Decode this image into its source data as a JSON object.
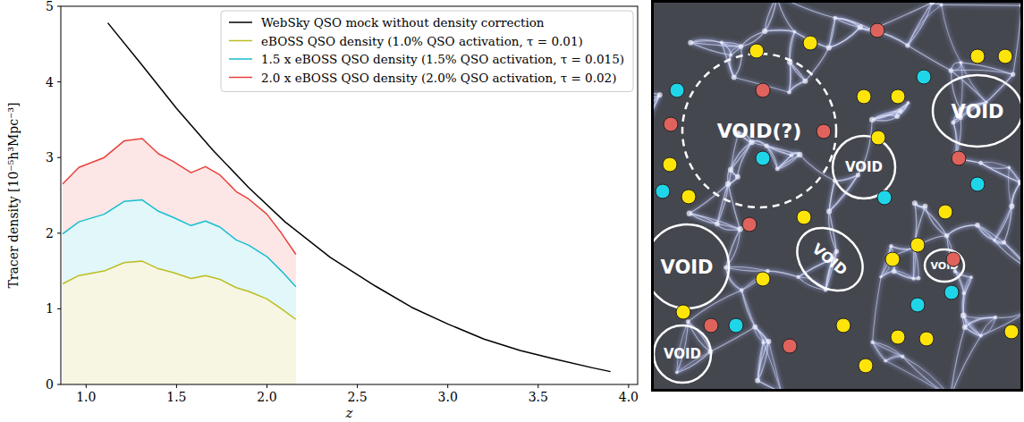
{
  "chart_data": {
    "type": "line",
    "x_label": "z",
    "y_label": "Tracer density [10⁻⁵h³Mpc⁻³]",
    "xlim": [
      0.86,
      4.05
    ],
    "ylim": [
      0,
      5
    ],
    "xticks": [
      {
        "value": 1.0,
        "label": "1.0"
      },
      {
        "value": 1.5,
        "label": "1.5"
      },
      {
        "value": 2.0,
        "label": "2.0"
      },
      {
        "value": 2.5,
        "label": "2.5"
      },
      {
        "value": 3.0,
        "label": "3.0"
      },
      {
        "value": 3.5,
        "label": "3.5"
      },
      {
        "value": 4.0,
        "label": "4.0"
      }
    ],
    "yticks": [
      0,
      1,
      2,
      3,
      4,
      5
    ],
    "grid": false,
    "legend": "upper right",
    "series": [
      {
        "name": "WebSky QSO mock without density correction",
        "color": "#000000",
        "type": "line",
        "x": [
          1.12,
          1.3,
          1.5,
          1.7,
          1.9,
          2.1,
          2.35,
          2.6,
          2.8,
          3.0,
          3.2,
          3.4,
          3.6,
          3.8,
          3.9
        ],
        "values": [
          4.78,
          4.25,
          3.65,
          3.1,
          2.6,
          2.15,
          1.68,
          1.3,
          1.02,
          0.8,
          0.6,
          0.45,
          0.33,
          0.22,
          0.17
        ]
      },
      {
        "name": "eBOSS QSO density (1.0% QSO activation, τ = 0.01)",
        "color": "#bcbd22",
        "type": "area",
        "x": [
          0.87,
          0.96,
          1.1,
          1.21,
          1.31,
          1.4,
          1.48,
          1.58,
          1.66,
          1.74,
          1.83,
          1.9,
          2.0,
          2.08,
          2.16
        ],
        "values": [
          1.33,
          1.44,
          1.5,
          1.61,
          1.63,
          1.53,
          1.48,
          1.4,
          1.44,
          1.39,
          1.28,
          1.23,
          1.13,
          1.0,
          0.86
        ]
      },
      {
        "name": "1.5 x eBOSS QSO density (1.5% QSO activation, τ = 0.015)",
        "color": "#17becf",
        "type": "area",
        "x": [
          0.87,
          0.96,
          1.1,
          1.21,
          1.31,
          1.4,
          1.48,
          1.58,
          1.66,
          1.74,
          1.83,
          1.9,
          2.0,
          2.08,
          2.16
        ],
        "values": [
          1.99,
          2.15,
          2.25,
          2.42,
          2.44,
          2.29,
          2.21,
          2.1,
          2.16,
          2.08,
          1.91,
          1.84,
          1.69,
          1.5,
          1.29
        ]
      },
      {
        "name": "2.0 x eBOSS QSO density (2.0% QSO activation, τ = 0.02)",
        "color": "#e8413c",
        "type": "area",
        "x": [
          0.87,
          0.96,
          1.1,
          1.21,
          1.31,
          1.4,
          1.48,
          1.58,
          1.66,
          1.74,
          1.83,
          1.9,
          2.0,
          2.08,
          2.16
        ],
        "values": [
          2.65,
          2.87,
          3.0,
          3.22,
          3.25,
          3.05,
          2.95,
          2.8,
          2.88,
          2.77,
          2.55,
          2.45,
          2.25,
          2.0,
          1.72
        ]
      }
    ]
  },
  "diagram": {
    "void_labels": [
      "VOID(?)",
      "VOID",
      "VOID",
      "VOID",
      "VOID",
      "VOID",
      "VOID"
    ]
  }
}
